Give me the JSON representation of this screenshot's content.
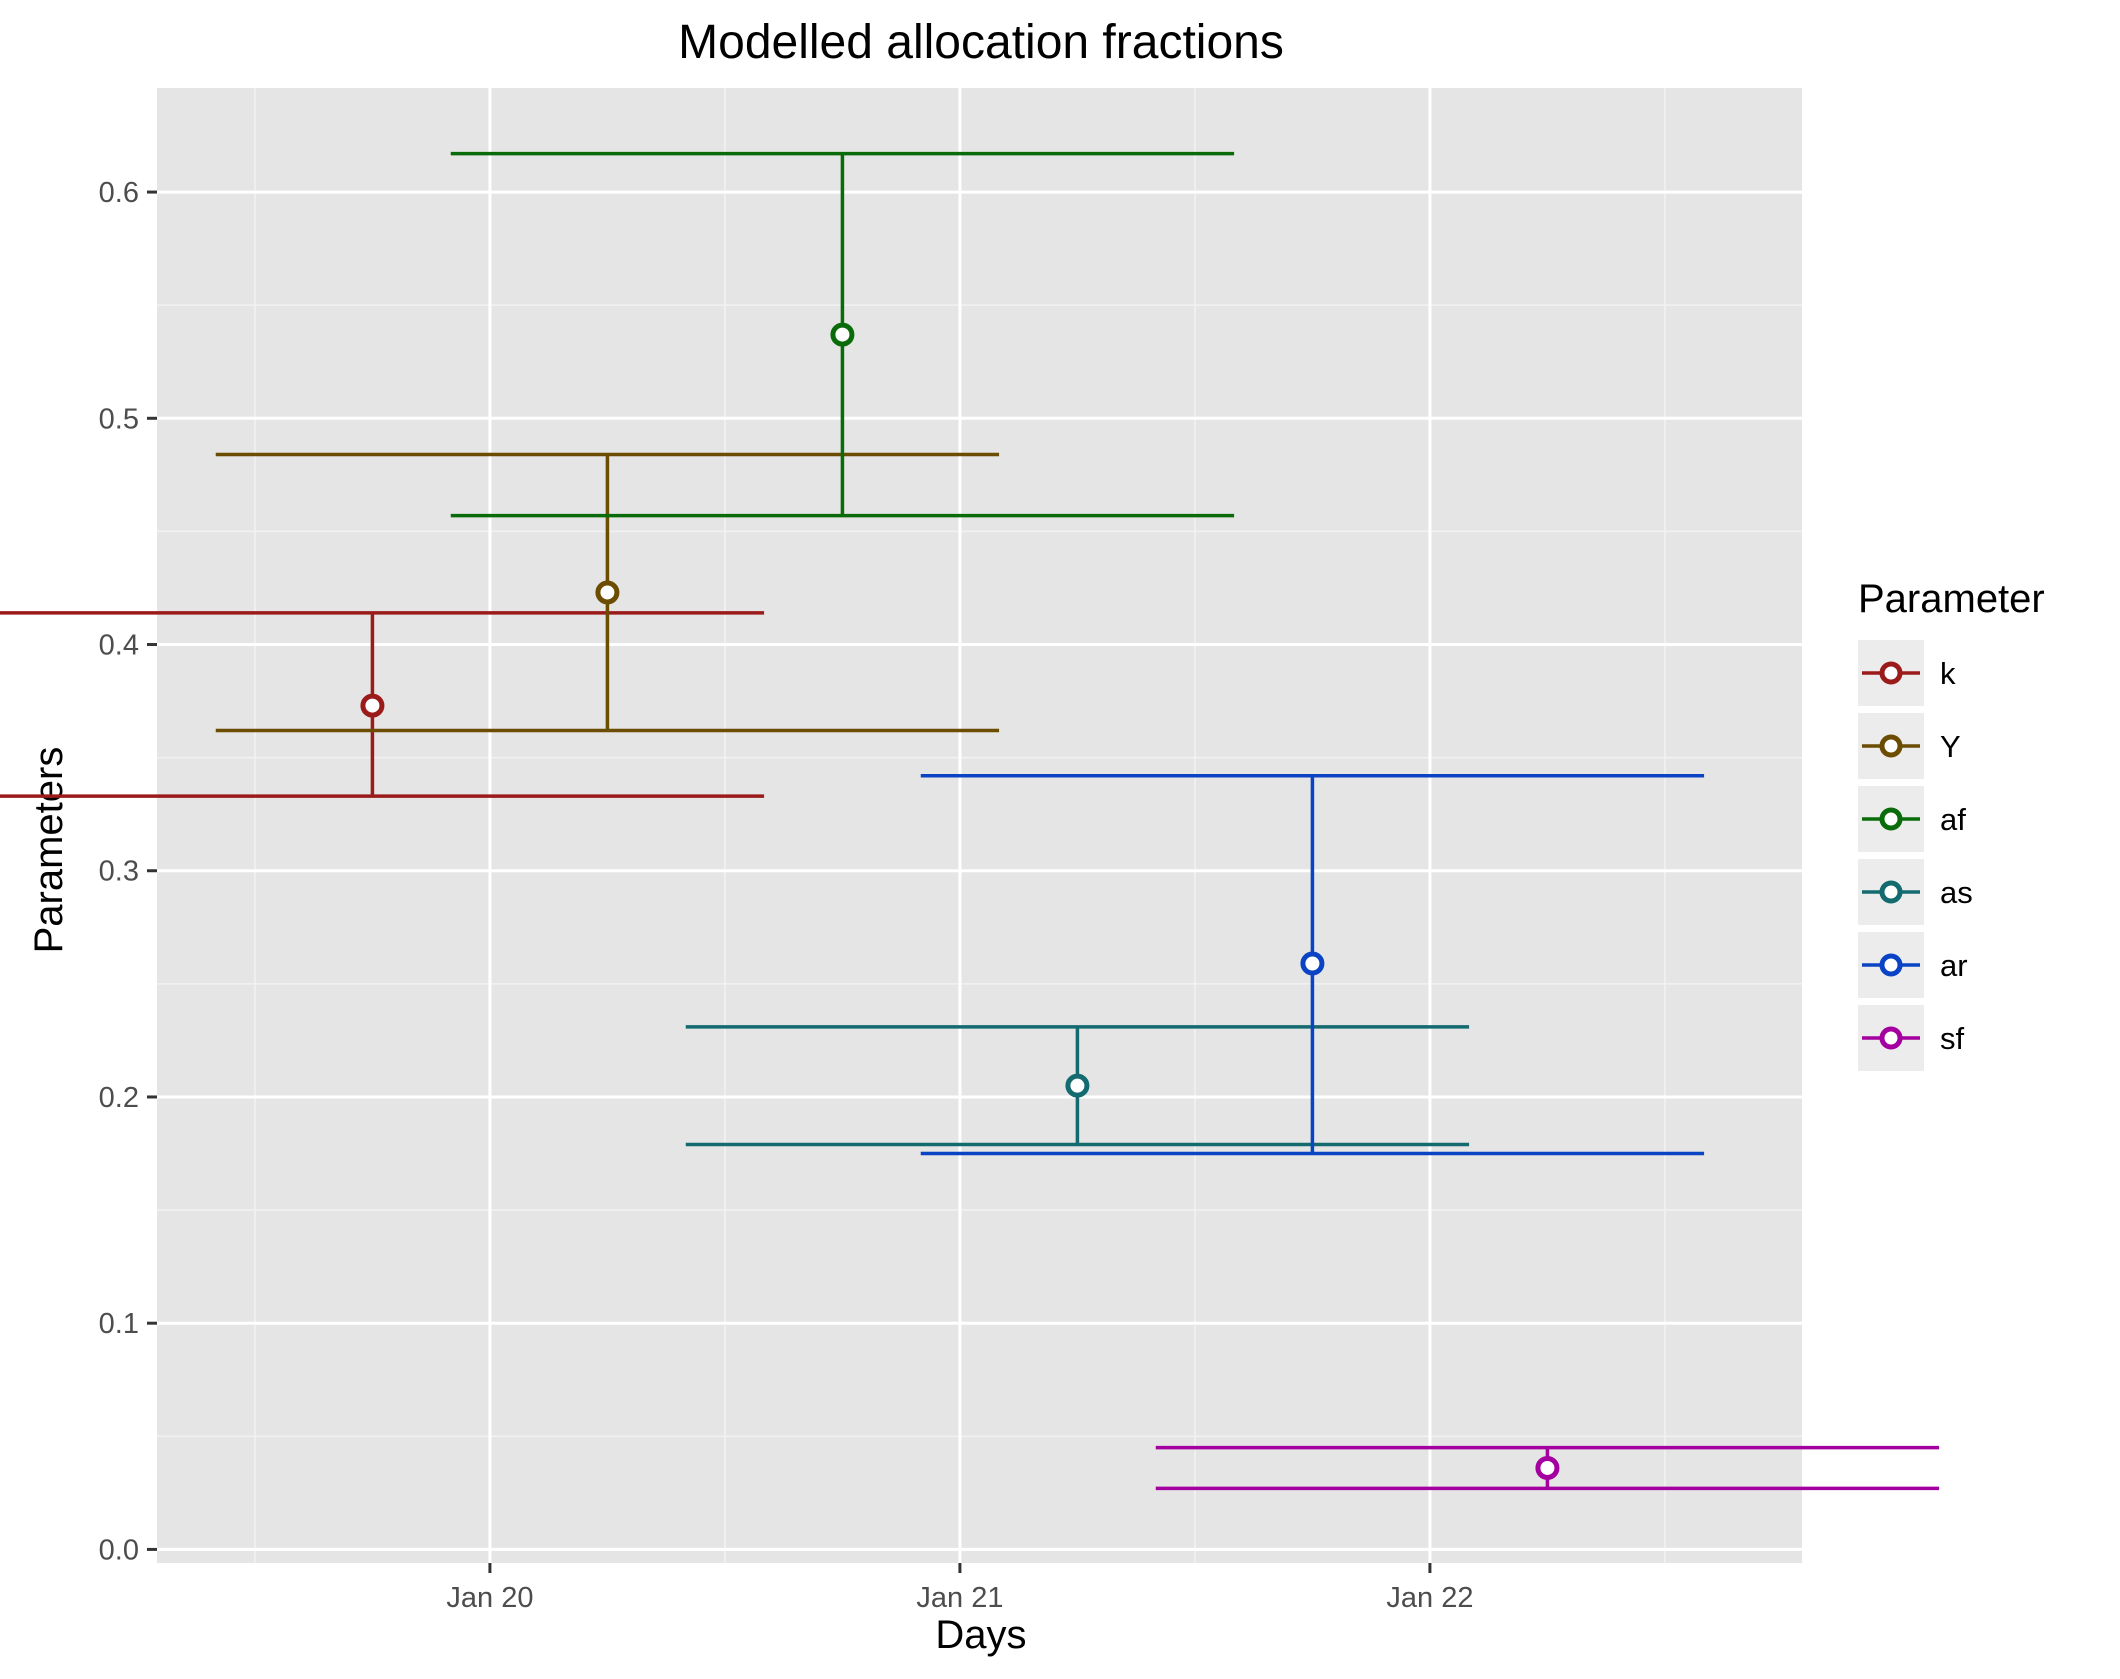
{
  "chart_data": {
    "type": "errorbar",
    "title": "Modelled allocation fractions",
    "xlabel": "Days",
    "ylabel": "Parameters",
    "x_ticks": [
      "Jan 20",
      "Jan 21",
      "Jan 22"
    ],
    "x_range": [
      "2021-01-19 07:00",
      "2021-01-22 19:00"
    ],
    "ylim": [
      -0.006,
      0.646
    ],
    "y_ticks": [
      "0.0",
      "0.1",
      "0.2",
      "0.3",
      "0.4",
      "0.5",
      "0.6"
    ],
    "grid": true,
    "legend": {
      "title": "Parameter",
      "position": "right"
    },
    "series": [
      {
        "name": "k",
        "color": "#9b1b1b",
        "x": "2021-01-19 18:00",
        "y": 0.373,
        "ymin": 0.333,
        "ymax": 0.414
      },
      {
        "name": "Y",
        "color": "#6b4c00",
        "x": "2021-01-20 06:00",
        "y": 0.423,
        "ymin": 0.362,
        "ymax": 0.484
      },
      {
        "name": "af",
        "color": "#0a6b0a",
        "x": "2021-01-20 18:00",
        "y": 0.537,
        "ymin": 0.457,
        "ymax": 0.617
      },
      {
        "name": "as",
        "color": "#136b6f",
        "x": "2021-01-21 06:00",
        "y": 0.205,
        "ymin": 0.179,
        "ymax": 0.231
      },
      {
        "name": "ar",
        "color": "#0a44c4",
        "x": "2021-01-21 18:00",
        "y": 0.259,
        "ymin": 0.175,
        "ymax": 0.342
      },
      {
        "name": "sf",
        "color": "#a3009f",
        "x": "2021-01-22 06:00",
        "y": 0.036,
        "ymin": 0.027,
        "ymax": 0.045
      }
    ]
  }
}
